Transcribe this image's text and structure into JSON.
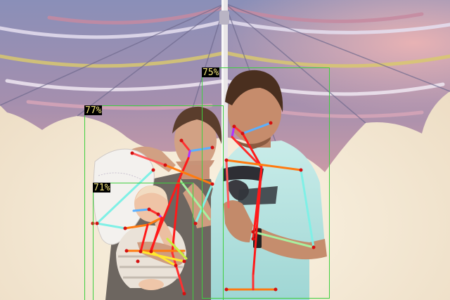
{
  "detections": [
    {
      "id": "person-man",
      "score_label": "75%",
      "confidence": 0.75
    },
    {
      "id": "person-woman",
      "score_label": "77%",
      "confidence": 0.77
    },
    {
      "id": "person-baby",
      "score_label": "71%",
      "confidence": 0.71
    }
  ],
  "colors": {
    "box": "#3fcf3f",
    "label_bg": "#000000",
    "label_text": "#f1e27a",
    "joint": "#d41010"
  }
}
